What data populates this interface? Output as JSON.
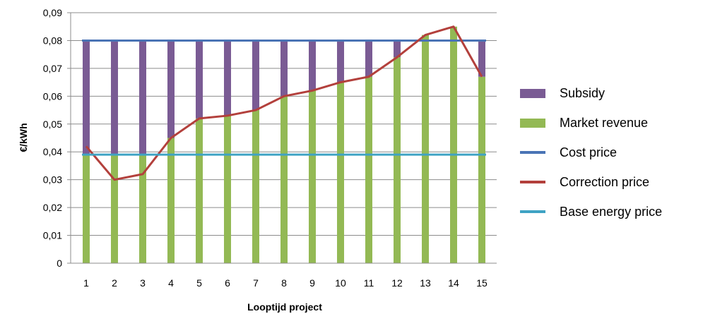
{
  "chart_data": {
    "type": "bar",
    "xlabel": "Looptijd project",
    "ylabel": "€/kWh",
    "ylim": [
      0,
      0.09
    ],
    "ytick_step": 0.01,
    "grid": true,
    "legend_position": "right",
    "categories": [
      "1",
      "2",
      "3",
      "4",
      "5",
      "6",
      "7",
      "8",
      "9",
      "10",
      "11",
      "12",
      "13",
      "14",
      "15"
    ],
    "series": [
      {
        "name": "Subsidy",
        "kind": "stacked-bar",
        "color": "#7a5b94",
        "values": [
          0.041,
          0.041,
          0.041,
          0.035,
          0.028,
          0.027,
          0.025,
          0.02,
          0.018,
          0.015,
          0.013,
          0.006,
          0,
          0,
          0.013
        ]
      },
      {
        "name": "Market revenue",
        "kind": "stacked-bar",
        "color": "#93b954",
        "values": [
          0.039,
          0.039,
          0.039,
          0.045,
          0.052,
          0.053,
          0.055,
          0.06,
          0.062,
          0.065,
          0.067,
          0.074,
          0.082,
          0.085,
          0.067
        ]
      },
      {
        "name": "Cost price",
        "kind": "line",
        "color": "#4a74b5",
        "values": [
          0.08,
          0.08,
          0.08,
          0.08,
          0.08,
          0.08,
          0.08,
          0.08,
          0.08,
          0.08,
          0.08,
          0.08,
          0.08,
          0.08,
          0.08
        ]
      },
      {
        "name": "Correction price",
        "kind": "line",
        "color": "#b3403c",
        "values": [
          0.042,
          0.03,
          0.032,
          0.045,
          0.052,
          0.053,
          0.055,
          0.06,
          0.062,
          0.065,
          0.067,
          0.074,
          0.082,
          0.085,
          0.067
        ]
      },
      {
        "name": "Base energy price",
        "kind": "line",
        "color": "#3fa3c4",
        "values": [
          0.039,
          0.039,
          0.039,
          0.039,
          0.039,
          0.039,
          0.039,
          0.039,
          0.039,
          0.039,
          0.039,
          0.039,
          0.039,
          0.039,
          0.039
        ]
      }
    ],
    "legend": [
      "Subsidy",
      "Market revenue",
      "Cost price",
      "Correction price",
      "Base energy price"
    ]
  }
}
